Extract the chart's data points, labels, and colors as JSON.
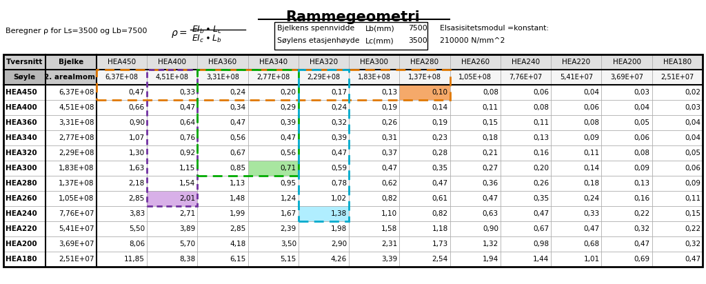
{
  "title": "Rammegeometri",
  "subtitle_left": "Beregner ρ for Ls=3500 og Lb=7500",
  "col_headers": [
    "Tversnitt",
    "Bjelke",
    "HEA450",
    "HEA400",
    "HEA360",
    "HEA340",
    "HEA320",
    "HEA300",
    "HEA280",
    "HEA260",
    "HEA240",
    "HEA220",
    "HEA200",
    "HEA180"
  ],
  "row2_headers": [
    "Søyle",
    "2. arealmom."
  ],
  "row2_values": [
    "6,37E+08",
    "4,51E+08",
    "3,31E+08",
    "2,77E+08",
    "2,29E+08",
    "1,83E+08",
    "1,37E+08",
    "1,05E+08",
    "7,76E+07",
    "5,41E+07",
    "3,69E+07",
    "2,51E+07"
  ],
  "rows": [
    [
      "HEA450",
      "6,37E+08",
      "0,47",
      "0,33",
      "0,24",
      "0,20",
      "0,17",
      "0,13",
      "0,10",
      "0,08",
      "0,06",
      "0,04",
      "0,03",
      "0,02"
    ],
    [
      "HEA400",
      "4,51E+08",
      "0,66",
      "0,47",
      "0,34",
      "0,29",
      "0,24",
      "0,19",
      "0,14",
      "0,11",
      "0,08",
      "0,06",
      "0,04",
      "0,03"
    ],
    [
      "HEA360",
      "3,31E+08",
      "0,90",
      "0,64",
      "0,47",
      "0,39",
      "0,32",
      "0,26",
      "0,19",
      "0,15",
      "0,11",
      "0,08",
      "0,05",
      "0,04"
    ],
    [
      "HEA340",
      "2,77E+08",
      "1,07",
      "0,76",
      "0,56",
      "0,47",
      "0,39",
      "0,31",
      "0,23",
      "0,18",
      "0,13",
      "0,09",
      "0,06",
      "0,04"
    ],
    [
      "HEA320",
      "2,29E+08",
      "1,30",
      "0,92",
      "0,67",
      "0,56",
      "0,47",
      "0,37",
      "0,28",
      "0,21",
      "0,16",
      "0,11",
      "0,08",
      "0,05"
    ],
    [
      "HEA300",
      "1,83E+08",
      "1,63",
      "1,15",
      "0,85",
      "0,71",
      "0,59",
      "0,47",
      "0,35",
      "0,27",
      "0,20",
      "0,14",
      "0,09",
      "0,06"
    ],
    [
      "HEA280",
      "1,37E+08",
      "2,18",
      "1,54",
      "1,13",
      "0,95",
      "0,78",
      "0,62",
      "0,47",
      "0,36",
      "0,26",
      "0,18",
      "0,13",
      "0,09"
    ],
    [
      "HEA260",
      "1,05E+08",
      "2,85",
      "2,01",
      "1,48",
      "1,24",
      "1,02",
      "0,82",
      "0,61",
      "0,47",
      "0,35",
      "0,24",
      "0,16",
      "0,11"
    ],
    [
      "HEA240",
      "7,76E+07",
      "3,83",
      "2,71",
      "1,99",
      "1,67",
      "1,38",
      "1,10",
      "0,82",
      "0,63",
      "0,47",
      "0,33",
      "0,22",
      "0,15"
    ],
    [
      "HEA220",
      "5,41E+07",
      "5,50",
      "3,89",
      "2,85",
      "2,39",
      "1,98",
      "1,58",
      "1,18",
      "0,90",
      "0,67",
      "0,47",
      "0,32",
      "0,22"
    ],
    [
      "HEA200",
      "3,69E+07",
      "8,06",
      "5,70",
      "4,18",
      "3,50",
      "2,90",
      "2,31",
      "1,73",
      "1,32",
      "0,98",
      "0,68",
      "0,47",
      "0,32"
    ],
    [
      "HEA180",
      "2,51E+07",
      "11,85",
      "8,38",
      "6,15",
      "5,15",
      "4,26",
      "3,39",
      "2,54",
      "1,94",
      "1,44",
      "1,01",
      "0,69",
      "0,47"
    ]
  ],
  "bg_color": "#ffffff"
}
